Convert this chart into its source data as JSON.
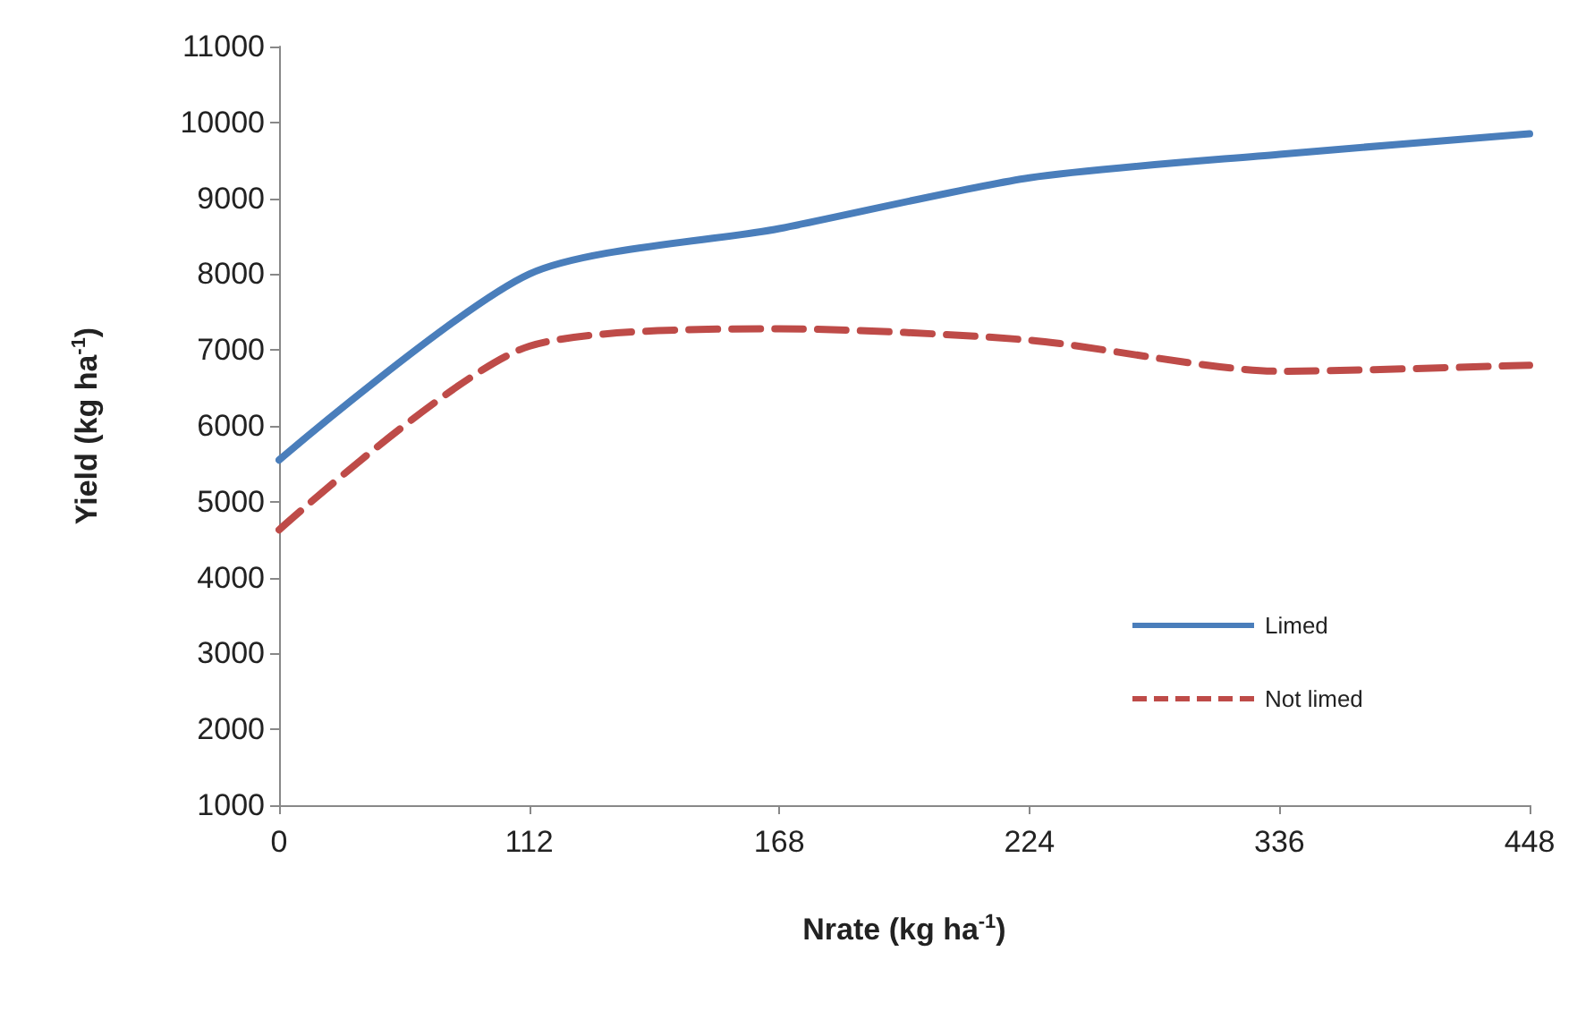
{
  "chart_data": {
    "type": "line",
    "xlabel": "Nrate (kg ha$^{-1}$)",
    "ylabel": "Yield (kg ha$^{-1}$)",
    "categories": [
      "0",
      "112",
      "168",
      "224",
      "336",
      "448"
    ],
    "series": [
      {
        "name": "Limed",
        "color": "#4a7ebb",
        "values": [
          5550,
          8000,
          8600,
          9270,
          9580,
          9850
        ],
        "line_style": "solid"
      },
      {
        "name": "Not limed",
        "color": "#be4b48",
        "values": [
          4630,
          7050,
          7280,
          7130,
          6720,
          6800
        ],
        "line_style": "dashed"
      }
    ],
    "ylim": [
      1000,
      11000
    ],
    "yticks": [
      1000,
      2000,
      3000,
      4000,
      5000,
      6000,
      7000,
      8000,
      9000,
      10000,
      11000
    ],
    "grid": false,
    "legend": "right",
    "marker": "none"
  }
}
